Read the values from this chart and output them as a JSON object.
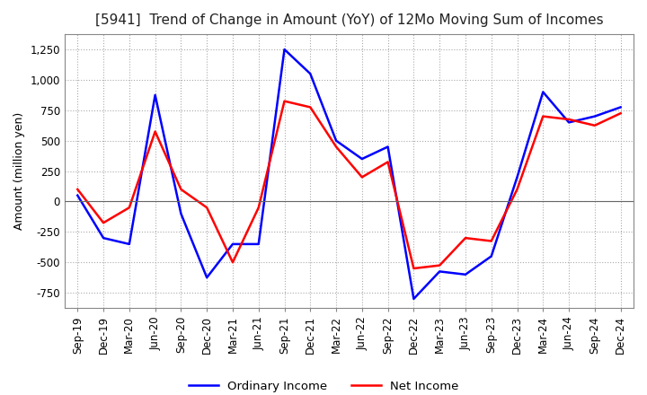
{
  "title": "[5941]  Trend of Change in Amount (YoY) of 12Mo Moving Sum of Incomes",
  "ylabel": "Amount (million yen)",
  "ylim": [
    -875,
    1375
  ],
  "yticks": [
    -750,
    -500,
    -250,
    0,
    250,
    500,
    750,
    1000,
    1250
  ],
  "background_color": "#ffffff",
  "grid_color": "#aaaaaa",
  "ordinary_income_color": "#0000ff",
  "net_income_color": "#ff0000",
  "x_labels": [
    "Sep-19",
    "Dec-19",
    "Mar-20",
    "Jun-20",
    "Sep-20",
    "Dec-20",
    "Mar-21",
    "Jun-21",
    "Sep-21",
    "Dec-21",
    "Mar-22",
    "Jun-22",
    "Sep-22",
    "Dec-22",
    "Mar-23",
    "Jun-23",
    "Sep-23",
    "Dec-23",
    "Mar-24",
    "Jun-24",
    "Sep-24",
    "Dec-24"
  ],
  "ordinary_income": [
    50,
    -300,
    -350,
    875,
    -100,
    -625,
    -350,
    -350,
    1250,
    1050,
    500,
    350,
    450,
    -800,
    -575,
    -600,
    -450,
    200,
    900,
    650,
    700,
    775
  ],
  "net_income": [
    100,
    -175,
    -50,
    575,
    100,
    -50,
    -500,
    -50,
    825,
    775,
    450,
    200,
    325,
    -550,
    -525,
    -300,
    -325,
    100,
    700,
    675,
    625,
    725
  ]
}
